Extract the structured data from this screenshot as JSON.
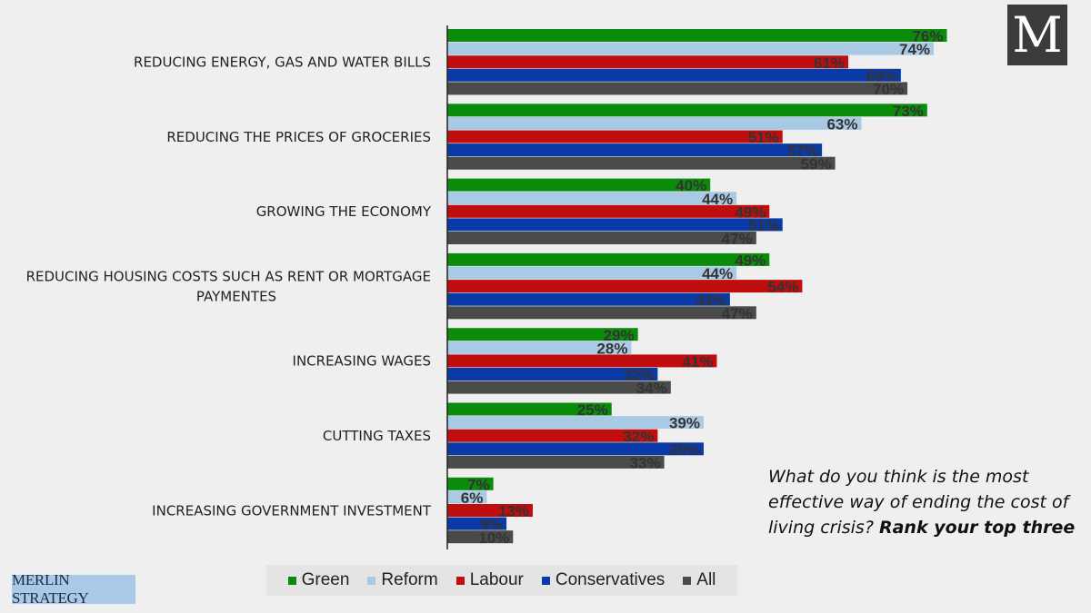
{
  "chart_data": {
    "type": "bar",
    "orientation": "horizontal",
    "categories": [
      "REDUCING ENERGY, GAS AND WATER BILLS",
      "REDUCING THE PRICES OF GROCERIES",
      "GROWING THE ECONOMY",
      "REDUCING HOUSING COSTS SUCH AS RENT OR MORTGAGE PAYMENTES",
      "INCREASING WAGES",
      "CUTTING TAXES",
      "INCREASING GOVERNMENT INVESTMENT"
    ],
    "category_lines": [
      [
        "REDUCING ENERGY, GAS AND WATER BILLS"
      ],
      [
        "REDUCING THE PRICES OF GROCERIES"
      ],
      [
        "GROWING THE ECONOMY"
      ],
      [
        "REDUCING HOUSING COSTS SUCH AS RENT OR MORTGAGE",
        "PAYMENTES"
      ],
      [
        "INCREASING WAGES"
      ],
      [
        "CUTTING TAXES"
      ],
      [
        "INCREASING GOVERNMENT INVESTMENT"
      ]
    ],
    "series": [
      {
        "name": "Green",
        "color": "#0a8c0a",
        "values": [
          76,
          73,
          40,
          49,
          29,
          25,
          7
        ],
        "labels": [
          "76%",
          "73%",
          "40%",
          "49%",
          "29%",
          "25%",
          "7%"
        ]
      },
      {
        "name": "Reform",
        "color": "#a9cae5",
        "values": [
          74,
          63,
          44,
          44,
          28,
          39,
          6
        ],
        "labels": [
          "74%",
          "63%",
          "44%",
          "44%",
          "28%",
          "39%",
          "6%"
        ]
      },
      {
        "name": "Labour",
        "color": "#c00d0d",
        "values": [
          61,
          51,
          49,
          54,
          41,
          32,
          13
        ],
        "labels": [
          "61%",
          "51%",
          "49%",
          "54%",
          "41%",
          "32%",
          "13%"
        ]
      },
      {
        "name": "Conservatives",
        "color": "#0a3aa8",
        "values": [
          69,
          57,
          51,
          43,
          32,
          39,
          9
        ],
        "labels": [
          "69%",
          "57%",
          "51%",
          "43%",
          "32%",
          "39%",
          "9%"
        ]
      },
      {
        "name": "All",
        "color": "#4a4a4a",
        "values": [
          70,
          59,
          47,
          47,
          34,
          33,
          10
        ],
        "labels": [
          "70%",
          "59%",
          "47%",
          "47%",
          "34%",
          "33%",
          "10%"
        ]
      }
    ],
    "xlim": [
      0,
      100
    ],
    "grid": false,
    "legend_position": "bottom"
  },
  "question": {
    "text": "What do you think is the most effective way of ending the cost of living crisis?",
    "emphasis": "Rank your top three"
  },
  "branding": {
    "logo_letter": "M",
    "brand_name": "MERLIN STRATEGY"
  }
}
